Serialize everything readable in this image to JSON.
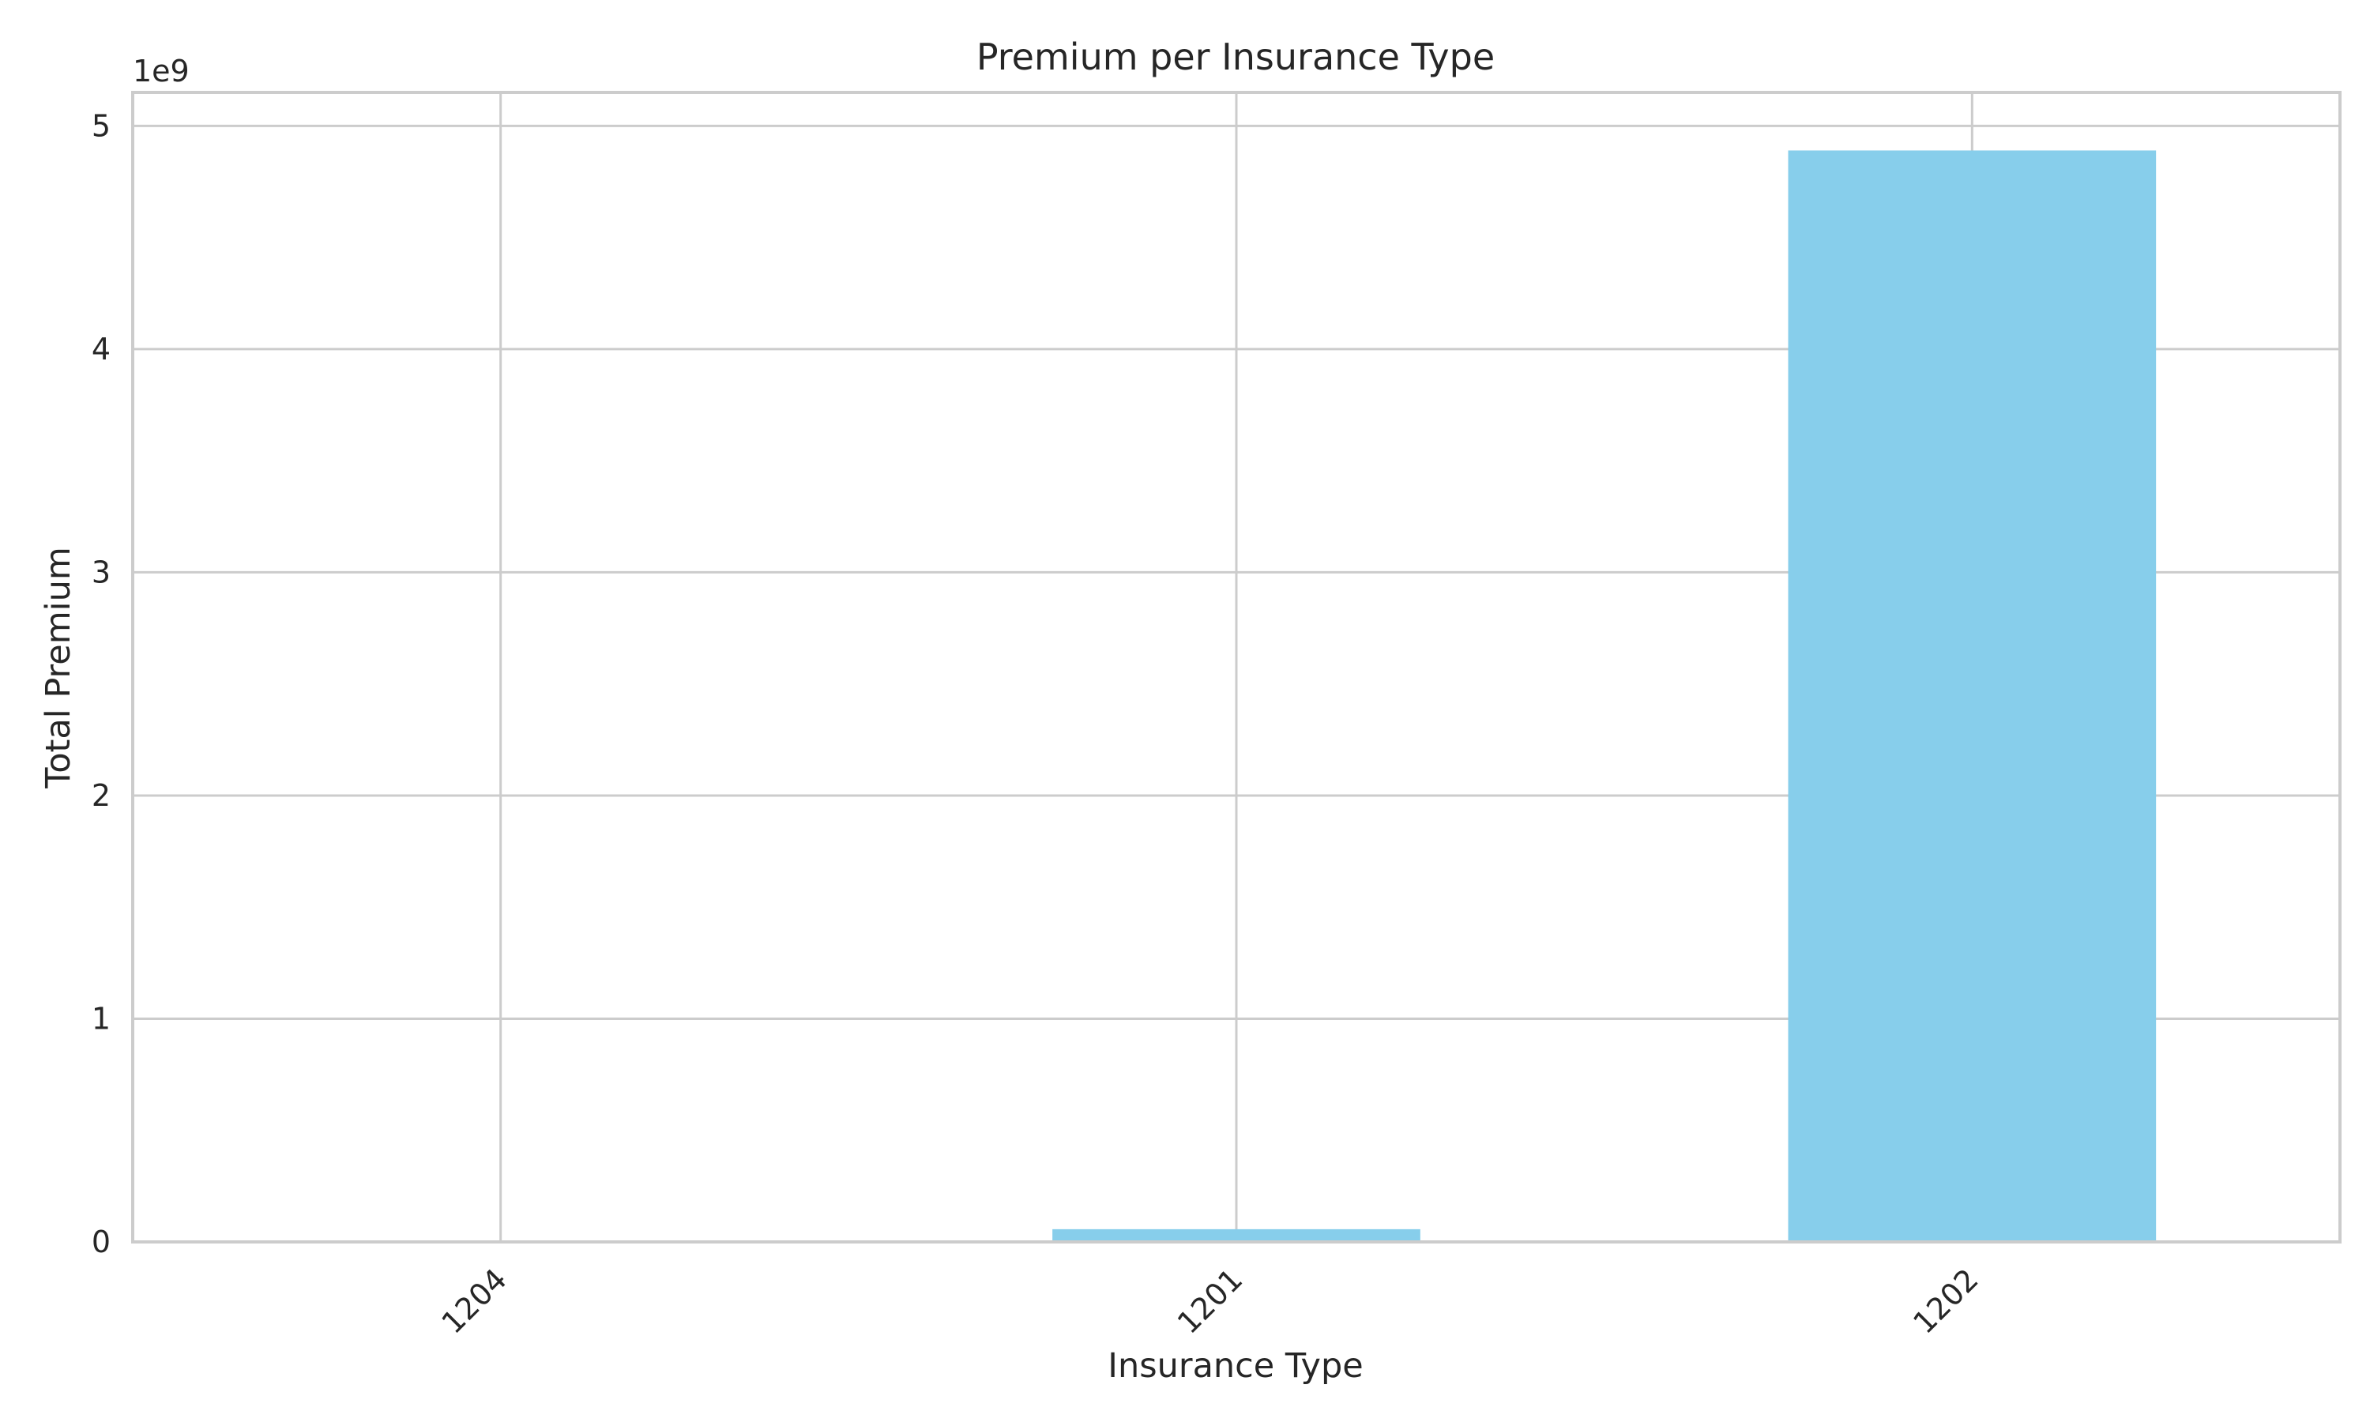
{
  "chart_data": {
    "type": "bar",
    "title": "Premium per Insurance Type",
    "xlabel": "Insurance Type",
    "ylabel": "Total Premium",
    "categories": [
      "1204",
      "1201",
      "1202"
    ],
    "values": [
      0,
      57000000,
      4890000000
    ],
    "ylim": [
      0,
      5150000000
    ],
    "yticks": [
      0,
      1000000000,
      2000000000,
      3000000000,
      4000000000,
      5000000000
    ],
    "ytick_labels": [
      "0",
      "1",
      "2",
      "3",
      "4",
      "5"
    ],
    "y_offset_label": "1e9",
    "bar_color": "#87CEEB",
    "grid": true,
    "legend": "none"
  }
}
